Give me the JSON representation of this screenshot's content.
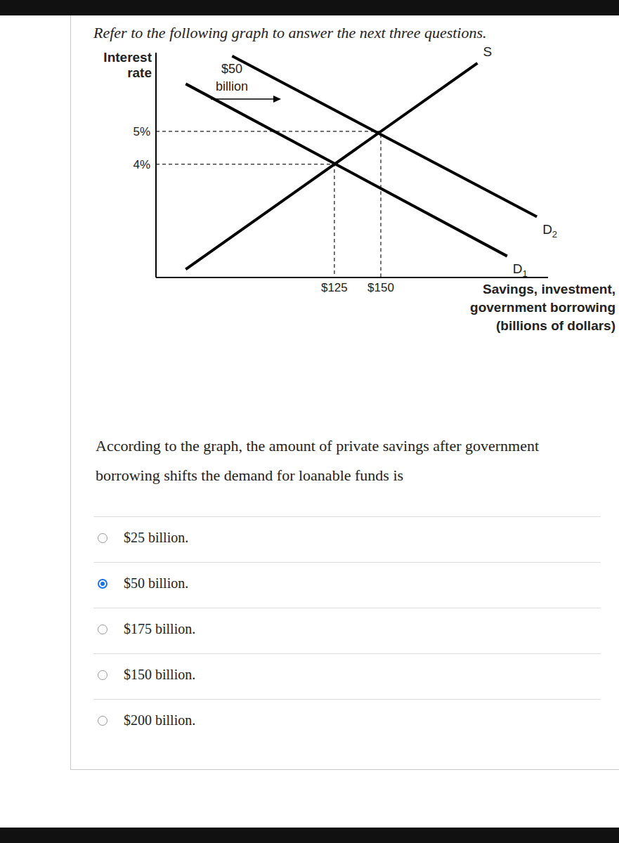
{
  "header": "Refer to the following graph to answer the next three questions.",
  "chart_data": {
    "type": "line",
    "y_label": [
      "Interest",
      "rate"
    ],
    "x_label": [
      "Savings, investment,",
      "government borrowing",
      "(billions of dollars)"
    ],
    "annotation": [
      "$50",
      "billion"
    ],
    "xlim": [
      29,
      240
    ],
    "ylim": [
      0.55,
      7.4
    ],
    "xticks": [
      {
        "value": 125,
        "label": "$125"
      },
      {
        "value": 150,
        "label": "$150"
      }
    ],
    "yticks": [
      {
        "value": 4,
        "label": "4%"
      },
      {
        "value": 5,
        "label": "5%"
      }
    ],
    "grid": false,
    "series": [
      {
        "name": "S",
        "color": "#000000",
        "x": [
          45,
          202
        ],
        "values": [
          0.8,
          7.08
        ]
      },
      {
        "name": "D1",
        "color": "#000000",
        "x": [
          45,
          218
        ],
        "values": [
          6.45,
          1.2
        ]
      },
      {
        "name": "D2",
        "color": "#000000",
        "x": [
          70,
          234
        ],
        "values": [
          7.3,
          2.4
        ]
      }
    ],
    "equilibria": [
      {
        "x": 125,
        "y": 4
      },
      {
        "x": 150,
        "y": 5
      }
    ]
  },
  "question": "According to the graph, the amount of private savings after government borrowing shifts the demand for loanable funds is",
  "options": [
    {
      "text": "$25 billion.",
      "selected": false
    },
    {
      "text": "$50 billion.",
      "selected": true
    },
    {
      "text": "$175 billion.",
      "selected": false
    },
    {
      "text": "$150 billion.",
      "selected": false
    },
    {
      "text": "$200 billion.",
      "selected": false
    }
  ]
}
